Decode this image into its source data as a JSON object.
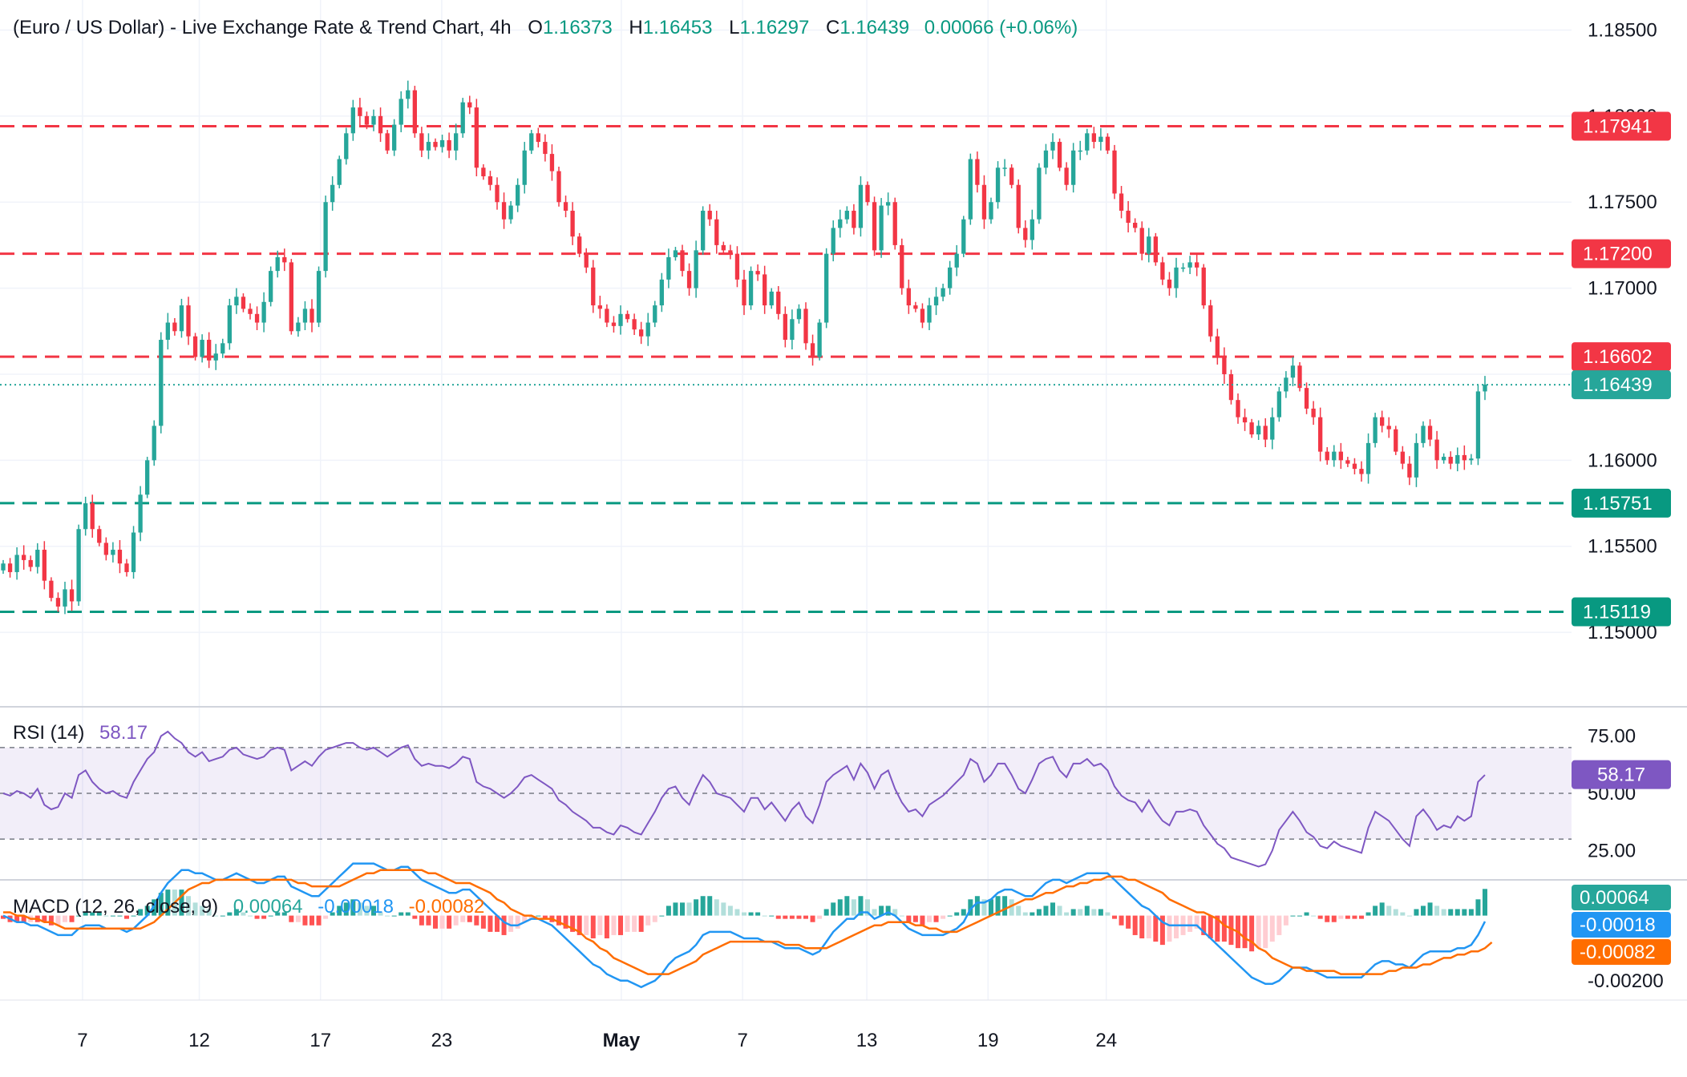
{
  "header": {
    "title": "(Euro / US Dollar) - Live Exchange Rate & Trend Chart, 4h",
    "o_label": "O",
    "o_value": "1.16373",
    "h_label": "H",
    "h_value": "1.16453",
    "l_label": "L",
    "l_value": "1.16297",
    "c_label": "C",
    "c_value": "1.16439",
    "change": "0.00066 (+0.06%)"
  },
  "colors": {
    "up": "#26a69a",
    "down": "#f23645",
    "rsi": "#7e57c2",
    "macd": "#2196f3",
    "signal": "#ff6d00",
    "price_line": "#26a69a",
    "grid": "#f0f3fa"
  },
  "chart_data": {
    "type": "candlestick",
    "price_axis": {
      "ticks": [
        "1.18500",
        "1.18000",
        "1.17500",
        "1.17000",
        "1.16500",
        "1.16000",
        "1.15500",
        "1.15000"
      ],
      "range": [
        1.146,
        1.186
      ]
    },
    "x_labels": [
      "7",
      "12",
      "17",
      "23",
      "May",
      "7",
      "13",
      "19",
      "24"
    ],
    "horizontal_levels": [
      {
        "value": 1.17941,
        "label": "1.17941",
        "color": "#f23645"
      },
      {
        "value": 1.172,
        "label": "1.17200",
        "color": "#f23645"
      },
      {
        "value": 1.16602,
        "label": "1.16602",
        "color": "#f23645"
      },
      {
        "value": 1.15751,
        "label": "1.15751",
        "color": "#089981"
      },
      {
        "value": 1.15119,
        "label": "1.15119",
        "color": "#089981"
      }
    ],
    "last_price": {
      "value": 1.16439,
      "label": "1.16439"
    },
    "closes": [
      1.154,
      1.1535,
      1.1545,
      1.1542,
      1.1538,
      1.1548,
      1.153,
      1.152,
      1.1515,
      1.1525,
      1.1518,
      1.156,
      1.1575,
      1.156,
      1.1552,
      1.1545,
      1.1548,
      1.154,
      1.1535,
      1.1558,
      1.158,
      1.16,
      1.162,
      1.167,
      1.168,
      1.1675,
      1.169,
      1.1672,
      1.166,
      1.167,
      1.1658,
      1.1662,
      1.1668,
      1.169,
      1.1695,
      1.1688,
      1.1685,
      1.168,
      1.1692,
      1.171,
      1.1718,
      1.1715,
      1.1675,
      1.168,
      1.1688,
      1.168,
      1.171,
      1.175,
      1.176,
      1.1775,
      1.179,
      1.1805,
      1.18,
      1.1795,
      1.18,
      1.179,
      1.178,
      1.1795,
      1.181,
      1.1815,
      1.179,
      1.178,
      1.1785,
      1.1782,
      1.1786,
      1.178,
      1.179,
      1.1808,
      1.1805,
      1.177,
      1.1765,
      1.176,
      1.175,
      1.174,
      1.1748,
      1.176,
      1.178,
      1.179,
      1.1785,
      1.1778,
      1.1768,
      1.175,
      1.1745,
      1.173,
      1.172,
      1.1712,
      1.169,
      1.1688,
      1.168,
      1.1678,
      1.1685,
      1.1682,
      1.1676,
      1.1672,
      1.168,
      1.169,
      1.1705,
      1.1718,
      1.1722,
      1.171,
      1.17,
      1.1722,
      1.1745,
      1.174,
      1.1725,
      1.1722,
      1.172,
      1.1705,
      1.169,
      1.171,
      1.1708,
      1.169,
      1.1698,
      1.1685,
      1.167,
      1.1682,
      1.1688,
      1.1668,
      1.166,
      1.168,
      1.172,
      1.1735,
      1.174,
      1.1745,
      1.1735,
      1.176,
      1.175,
      1.1722,
      1.1748,
      1.175,
      1.1725,
      1.17,
      1.169,
      1.1688,
      1.168,
      1.169,
      1.1695,
      1.17,
      1.1712,
      1.172,
      1.174,
      1.1775,
      1.176,
      1.174,
      1.175,
      1.177,
      1.177,
      1.176,
      1.1735,
      1.1728,
      1.174,
      1.177,
      1.178,
      1.1785,
      1.177,
      1.176,
      1.178,
      1.178,
      1.179,
      1.1785,
      1.1788,
      1.178,
      1.1755,
      1.1745,
      1.1738,
      1.1735,
      1.172,
      1.173,
      1.1715,
      1.1705,
      1.17,
      1.1712,
      1.1712,
      1.1715,
      1.1712,
      1.169,
      1.1672,
      1.166,
      1.165,
      1.1635,
      1.1625,
      1.1622,
      1.1615,
      1.162,
      1.1612,
      1.1625,
      1.164,
      1.1648,
      1.1655,
      1.1642,
      1.163,
      1.1625,
      1.1605,
      1.16,
      1.1605,
      1.16,
      1.1598,
      1.1595,
      1.1592,
      1.161,
      1.1625,
      1.162,
      1.1618,
      1.1605,
      1.1598,
      1.159,
      1.161,
      1.162,
      1.1612,
      1.16,
      1.1602,
      1.1598,
      1.1603,
      1.16,
      1.1601,
      1.164,
      1.1644
    ],
    "rsi": {
      "label": "RSI (14)",
      "value": "58.17",
      "levels": [
        "75.00",
        "50.00",
        "25.00"
      ],
      "bands": {
        "upper": 70,
        "middle": 50,
        "lower": 30
      },
      "range": [
        15,
        85
      ],
      "values": [
        50,
        49,
        51,
        50,
        48,
        52,
        45,
        43,
        44,
        50,
        48,
        58,
        60,
        55,
        52,
        50,
        51,
        49,
        48,
        55,
        60,
        65,
        68,
        75,
        77,
        74,
        72,
        68,
        66,
        68,
        64,
        65,
        66,
        69,
        70,
        67,
        66,
        65,
        66,
        69,
        70,
        69,
        60,
        62,
        64,
        62,
        66,
        69,
        70,
        71,
        72,
        72,
        70,
        69,
        70,
        68,
        66,
        68,
        70,
        71,
        65,
        62,
        63,
        62,
        62,
        61,
        63,
        66,
        65,
        55,
        53,
        52,
        50,
        48,
        50,
        53,
        57,
        58,
        56,
        54,
        52,
        47,
        45,
        42,
        40,
        38,
        35,
        35,
        33,
        32,
        36,
        35,
        33,
        32,
        37,
        42,
        48,
        52,
        53,
        48,
        45,
        52,
        58,
        55,
        50,
        49,
        48,
        45,
        42,
        48,
        48,
        43,
        46,
        42,
        38,
        43,
        46,
        40,
        37,
        45,
        55,
        58,
        60,
        62,
        56,
        63,
        59,
        52,
        58,
        60,
        52,
        46,
        42,
        43,
        40,
        45,
        47,
        49,
        52,
        55,
        58,
        65,
        63,
        55,
        58,
        63,
        63,
        58,
        52,
        50,
        56,
        63,
        65,
        66,
        60,
        57,
        63,
        63,
        65,
        62,
        63,
        60,
        53,
        49,
        47,
        46,
        42,
        47,
        42,
        38,
        36,
        42,
        42,
        43,
        42,
        36,
        32,
        28,
        26,
        22,
        21,
        20,
        19,
        18,
        19,
        25,
        34,
        38,
        42,
        38,
        33,
        31,
        27,
        26,
        29,
        27,
        26,
        25,
        24,
        35,
        42,
        40,
        38,
        34,
        30,
        27,
        40,
        43,
        39,
        34,
        36,
        35,
        40,
        38,
        40,
        55,
        58
      ]
    },
    "macd": {
      "label": "MACD (12, 26, close, 9)",
      "hist_value": "0.00064",
      "macd_value": "-0.00018",
      "signal_value": "-0.00082",
      "axis_label": "-0.00200",
      "range": [
        -0.0024,
        0.001
      ],
      "macd": [
        0.0,
        -0.0001,
        -0.0002,
        -0.0002,
        -0.0003,
        -0.0003,
        -0.0004,
        -0.0005,
        -0.0006,
        -0.0006,
        -0.0006,
        -0.0004,
        -0.0003,
        -0.0003,
        -0.0003,
        -0.0004,
        -0.0004,
        -0.0004,
        -0.0005,
        -0.0004,
        -0.0002,
        0.0,
        0.0003,
        0.0007,
        0.001,
        0.0012,
        0.0014,
        0.0014,
        0.0013,
        0.0013,
        0.0012,
        0.0011,
        0.0011,
        0.0012,
        0.0013,
        0.0012,
        0.0011,
        0.001,
        0.001,
        0.0011,
        0.0012,
        0.0012,
        0.0009,
        0.0008,
        0.0007,
        0.0006,
        0.0006,
        0.0008,
        0.001,
        0.0012,
        0.0014,
        0.0016,
        0.0016,
        0.0016,
        0.0016,
        0.0015,
        0.0014,
        0.0014,
        0.0015,
        0.0015,
        0.0013,
        0.0011,
        0.001,
        0.0009,
        0.0008,
        0.0007,
        0.0007,
        0.0008,
        0.0008,
        0.0006,
        0.0004,
        0.0002,
        0.0,
        -0.0002,
        -0.0003,
        -0.0003,
        -0.0002,
        -0.0001,
        -0.0001,
        -0.0002,
        -0.0003,
        -0.0005,
        -0.0007,
        -0.0009,
        -0.0011,
        -0.0013,
        -0.0015,
        -0.0016,
        -0.0018,
        -0.0019,
        -0.002,
        -0.002,
        -0.0021,
        -0.0022,
        -0.0021,
        -0.002,
        -0.0018,
        -0.0015,
        -0.0013,
        -0.0012,
        -0.0011,
        -0.0009,
        -0.0006,
        -0.0005,
        -0.0005,
        -0.0005,
        -0.0005,
        -0.0006,
        -0.0007,
        -0.0007,
        -0.0007,
        -0.0008,
        -0.0008,
        -0.0009,
        -0.001,
        -0.001,
        -0.001,
        -0.0011,
        -0.0012,
        -0.0011,
        -0.0008,
        -0.0005,
        -0.0003,
        -0.0001,
        -0.0001,
        0.0001,
        0.0001,
        -0.0001,
        0.0,
        0.0001,
        0.0,
        -0.0002,
        -0.0004,
        -0.0005,
        -0.0006,
        -0.0006,
        -0.0006,
        -0.0006,
        -0.0005,
        -0.0004,
        -0.0002,
        0.0002,
        0.0004,
        0.0004,
        0.0005,
        0.0007,
        0.0008,
        0.0008,
        0.0007,
        0.0006,
        0.0006,
        0.0008,
        0.001,
        0.0011,
        0.0011,
        0.001,
        0.0011,
        0.0012,
        0.0013,
        0.0013,
        0.0013,
        0.0013,
        0.0011,
        0.0009,
        0.0007,
        0.0005,
        0.0003,
        0.0002,
        0.0,
        -0.0002,
        -0.0003,
        -0.0003,
        -0.0003,
        -0.0003,
        -0.0003,
        -0.0005,
        -0.0007,
        -0.0009,
        -0.0011,
        -0.0013,
        -0.0015,
        -0.0017,
        -0.0019,
        -0.002,
        -0.0021,
        -0.0021,
        -0.002,
        -0.0018,
        -0.0016,
        -0.0016,
        -0.0016,
        -0.0017,
        -0.0018,
        -0.0019,
        -0.0019,
        -0.0019,
        -0.0019,
        -0.0019,
        -0.0019,
        -0.0017,
        -0.0015,
        -0.0014,
        -0.0014,
        -0.0015,
        -0.0015,
        -0.0016,
        -0.0014,
        -0.0012,
        -0.0011,
        -0.0011,
        -0.0011,
        -0.0011,
        -0.001,
        -0.001,
        -0.0009,
        -0.0006,
        -0.00018
      ],
      "signal": [
        0.0001,
        0.0001,
        0.0,
        0.0,
        -0.0001,
        -0.0001,
        -0.0002,
        -0.0002,
        -0.0003,
        -0.0004,
        -0.0004,
        -0.0004,
        -0.0004,
        -0.0004,
        -0.0004,
        -0.0004,
        -0.0004,
        -0.0004,
        -0.0004,
        -0.0004,
        -0.0004,
        -0.0003,
        -0.0002,
        0.0,
        0.0002,
        0.0004,
        0.0006,
        0.0008,
        0.0009,
        0.001,
        0.001,
        0.0011,
        0.0011,
        0.0011,
        0.0011,
        0.0011,
        0.0011,
        0.0011,
        0.0011,
        0.0011,
        0.0011,
        0.0011,
        0.0011,
        0.001,
        0.001,
        0.0009,
        0.0009,
        0.0009,
        0.0009,
        0.0009,
        0.001,
        0.0011,
        0.0012,
        0.0013,
        0.0013,
        0.0014,
        0.0014,
        0.0014,
        0.0014,
        0.0014,
        0.0014,
        0.0014,
        0.0013,
        0.0013,
        0.0012,
        0.0011,
        0.001,
        0.001,
        0.001,
        0.0009,
        0.0008,
        0.0007,
        0.0005,
        0.0004,
        0.0002,
        0.0001,
        0.0,
        0.0,
        -0.0001,
        -0.0001,
        -0.0001,
        -0.0002,
        -0.0003,
        -0.0004,
        -0.0005,
        -0.0007,
        -0.0008,
        -0.001,
        -0.0011,
        -0.0013,
        -0.0014,
        -0.0015,
        -0.0016,
        -0.0017,
        -0.0018,
        -0.0018,
        -0.0018,
        -0.0018,
        -0.0017,
        -0.0016,
        -0.0015,
        -0.0014,
        -0.0012,
        -0.0011,
        -0.001,
        -0.0009,
        -0.0008,
        -0.0008,
        -0.0008,
        -0.0008,
        -0.0008,
        -0.0008,
        -0.0008,
        -0.0008,
        -0.0009,
        -0.0009,
        -0.0009,
        -0.001,
        -0.001,
        -0.001,
        -0.001,
        -0.0009,
        -0.0008,
        -0.0007,
        -0.0006,
        -0.0005,
        -0.0004,
        -0.0003,
        -0.0003,
        -0.0002,
        -0.0002,
        -0.0002,
        -0.0002,
        -0.0003,
        -0.0003,
        -0.0004,
        -0.0004,
        -0.0005,
        -0.0005,
        -0.0005,
        -0.0004,
        -0.0003,
        -0.0002,
        -0.0001,
        0.0,
        0.0001,
        0.0002,
        0.0003,
        0.0004,
        0.0005,
        0.0005,
        0.0006,
        0.0007,
        0.0007,
        0.0008,
        0.0009,
        0.0009,
        0.001,
        0.001,
        0.0011,
        0.0011,
        0.0012,
        0.0012,
        0.0012,
        0.0011,
        0.0011,
        0.001,
        0.0009,
        0.0008,
        0.0007,
        0.0005,
        0.0004,
        0.0003,
        0.0002,
        0.0001,
        0.0001,
        0.0,
        -0.0001,
        -0.0003,
        -0.0004,
        -0.0005,
        -0.0007,
        -0.0008,
        -0.001,
        -0.0011,
        -0.0013,
        -0.0014,
        -0.0015,
        -0.0016,
        -0.0016,
        -0.0017,
        -0.0017,
        -0.0017,
        -0.0017,
        -0.0017,
        -0.0018,
        -0.0018,
        -0.0018,
        -0.0018,
        -0.0018,
        -0.0018,
        -0.0018,
        -0.0017,
        -0.0017,
        -0.0016,
        -0.0016,
        -0.0016,
        -0.0015,
        -0.0015,
        -0.0014,
        -0.0013,
        -0.0013,
        -0.0012,
        -0.0012,
        -0.0011,
        -0.0011,
        -0.001,
        -0.00082
      ]
    }
  }
}
